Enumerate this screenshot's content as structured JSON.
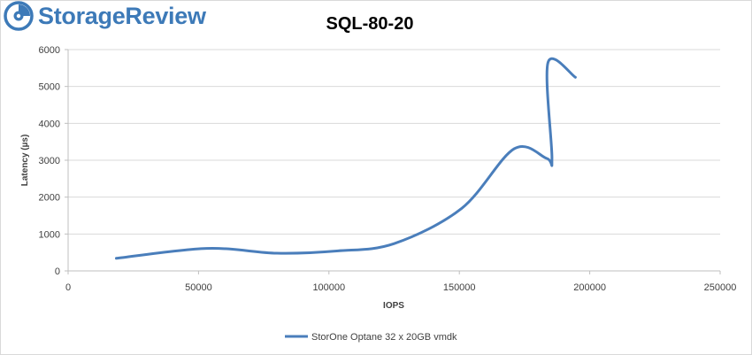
{
  "brand": {
    "name": "StorageReview",
    "color": "#3d7ab8",
    "icon": "storagereview-logo-icon"
  },
  "chart_data": {
    "type": "line",
    "title": "SQL-80-20",
    "xlabel": "IOPS",
    "ylabel": "Latency (µs)",
    "xlim": [
      0,
      250000
    ],
    "ylim": [
      0,
      6000
    ],
    "xticks": [
      0,
      50000,
      100000,
      150000,
      200000,
      250000
    ],
    "yticks": [
      0,
      1000,
      2000,
      3000,
      4000,
      5000,
      6000
    ],
    "grid": "horizontal",
    "legend_position": "bottom",
    "smooth": true,
    "series": [
      {
        "name": "StorOne Optane 32 x 20GB vmdk",
        "color": "#4a7ebb",
        "points": [
          [
            18500,
            340
          ],
          [
            53000,
            610
          ],
          [
            80000,
            480
          ],
          [
            103000,
            540
          ],
          [
            125000,
            740
          ],
          [
            151000,
            1700
          ],
          [
            171000,
            3310
          ],
          [
            183500,
            3050
          ],
          [
            185500,
            3060
          ],
          [
            184000,
            5650
          ],
          [
            194500,
            5250
          ]
        ]
      }
    ]
  }
}
